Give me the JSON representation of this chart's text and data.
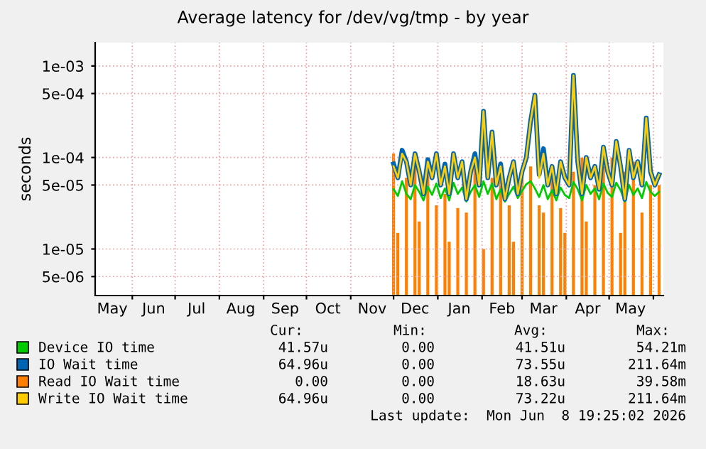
{
  "chart_data": {
    "type": "line",
    "title": "Average latency for /dev/vg/tmp - by year",
    "ylabel": "seconds",
    "log": "y",
    "grid": true,
    "legend": "bottom",
    "xlim": [
      "2025-05-06",
      "2026-06-08"
    ],
    "xticks": [
      {
        "value": "2025-06-01",
        "label": null
      },
      {
        "value": "2025-07-01",
        "label": null
      },
      {
        "value": "2025-08-01",
        "label": null
      },
      {
        "value": "2025-09-01",
        "label": null
      },
      {
        "value": "2025-10-01",
        "label": null
      },
      {
        "value": "2025-11-01",
        "label": null
      },
      {
        "value": "2025-12-01",
        "label": null
      },
      {
        "value": "2026-01-01",
        "label": null
      },
      {
        "value": "2026-02-01",
        "label": null
      },
      {
        "value": "2026-03-01",
        "label": null
      },
      {
        "value": "2026-04-01",
        "label": null
      },
      {
        "value": "2026-05-01",
        "label": null
      },
      {
        "value": "2026-06-01",
        "label": null
      },
      {
        "value": "2025-05-18",
        "label": "May"
      },
      {
        "value": "2025-06-16",
        "label": "Jun"
      },
      {
        "value": "2025-07-16",
        "label": "Jul"
      },
      {
        "value": "2025-08-16",
        "label": "Aug"
      },
      {
        "value": "2025-09-16",
        "label": "Sep"
      },
      {
        "value": "2025-10-16",
        "label": "Oct"
      },
      {
        "value": "2025-11-16",
        "label": "Nov"
      },
      {
        "value": "2025-12-16",
        "label": "Dec"
      },
      {
        "value": "2026-01-16",
        "label": "Jan"
      },
      {
        "value": "2026-02-15",
        "label": "Feb"
      },
      {
        "value": "2026-03-16",
        "label": "Mar"
      },
      {
        "value": "2026-04-16",
        "label": "Apr"
      },
      {
        "value": "2026-05-16",
        "label": "May"
      }
    ],
    "ylim": [
      3.1e-06,
      0.0018
    ],
    "yticks": [
      {
        "value": 5e-06,
        "label": "5e-06"
      },
      {
        "value": 1e-05,
        "label": "1e-05"
      },
      {
        "value": 5e-05,
        "label": "5e-05"
      },
      {
        "value": 0.0001,
        "label": "1e-04"
      },
      {
        "value": 0.0005,
        "label": "5e-04"
      },
      {
        "value": 0.001,
        "label": "1e-03"
      }
    ],
    "x": [
      "2025-12-01",
      "2025-12-04",
      "2025-12-07",
      "2025-12-10",
      "2025-12-13",
      "2025-12-16",
      "2025-12-19",
      "2025-12-22",
      "2025-12-25",
      "2025-12-28",
      "2025-12-31",
      "2026-01-03",
      "2026-01-06",
      "2026-01-09",
      "2026-01-12",
      "2026-01-15",
      "2026-01-18",
      "2026-01-21",
      "2026-01-24",
      "2026-01-27",
      "2026-01-30",
      "2026-02-02",
      "2026-02-05",
      "2026-02-08",
      "2026-02-11",
      "2026-02-14",
      "2026-02-17",
      "2026-02-20",
      "2026-02-23",
      "2026-02-26",
      "2026-03-01",
      "2026-03-04",
      "2026-03-07",
      "2026-03-10",
      "2026-03-13",
      "2026-03-16",
      "2026-03-19",
      "2026-03-22",
      "2026-03-25",
      "2026-03-28",
      "2026-03-31",
      "2026-04-03",
      "2026-04-06",
      "2026-04-09",
      "2026-04-12",
      "2026-04-15",
      "2026-04-18",
      "2026-04-21",
      "2026-04-24",
      "2026-04-27",
      "2026-04-30",
      "2026-05-03",
      "2026-05-06",
      "2026-05-09",
      "2026-05-12",
      "2026-05-15",
      "2026-05-18",
      "2026-05-21",
      "2026-05-24",
      "2026-05-27",
      "2026-05-30",
      "2026-06-02",
      "2026-06-05"
    ],
    "series": [
      {
        "name": "Device IO time",
        "color": "#00cc00",
        "values": [
          4.5e-05,
          3.8e-05,
          5.5e-05,
          4e-05,
          3.5e-05,
          5e-05,
          4.2e-05,
          3.4e-05,
          4.8e-05,
          3.9e-05,
          5.2e-05,
          3.6e-05,
          4.6e-05,
          3.4e-05,
          5.3e-05,
          4e-05,
          4.7e-05,
          3.3e-05,
          4.2e-05,
          5e-05,
          3.7e-05,
          5.5e-05,
          4e-05,
          5.2e-05,
          3.5e-05,
          4.5e-05,
          3.3e-05,
          4e-05,
          4.8e-05,
          3.6e-05,
          4.3e-05,
          5.1e-05,
          5.5e-05,
          4.6e-05,
          3.7e-05,
          5e-05,
          3.5e-05,
          4.4e-05,
          3.4e-05,
          4.7e-05,
          3.9e-05,
          3.6e-05,
          5.4e-05,
          4.5e-05,
          3.4e-05,
          5e-05,
          4e-05,
          4.6e-05,
          3.5e-05,
          5.2e-05,
          4.1e-05,
          3.7e-05,
          5.3e-05,
          4.4e-05,
          3.3e-05,
          5e-05,
          3.9e-05,
          4.6e-05,
          3.6e-05,
          5.4e-05,
          4.2e-05,
          3.8e-05,
          4.2e-05
        ]
      },
      {
        "name": "IO Wait time",
        "color": "#0066b3",
        "values": [
          8.5e-05,
          6e-05,
          0.00012,
          9e-05,
          5e-05,
          0.00011,
          7e-05,
          4e-05,
          9.5e-05,
          6e-05,
          0.00011,
          5e-05,
          8.5e-05,
          4e-05,
          0.00011,
          6e-05,
          9e-05,
          3.5e-05,
          7e-05,
          0.00011,
          5e-05,
          0.00032,
          6e-05,
          0.00019,
          5e-05,
          8.5e-05,
          3.5e-05,
          6e-05,
          9e-05,
          4e-05,
          7e-05,
          0.0001,
          0.00025,
          0.00048,
          6.5e-05,
          0.000125,
          5e-05,
          8e-05,
          4e-05,
          9e-05,
          6e-05,
          5e-05,
          0.00079,
          9e-05,
          4e-05,
          0.0001,
          6e-05,
          8e-05,
          4.5e-05,
          0.00013,
          7e-05,
          5e-05,
          0.00015,
          8e-05,
          3.5e-05,
          0.00012,
          6e-05,
          9e-05,
          5e-05,
          0.00027,
          7e-05,
          5e-05,
          6.5e-05
        ]
      },
      {
        "name": "Read IO Wait time",
        "type": "bar",
        "color": "#ff8000",
        "values": [
          0.00011,
          1.5e-05,
          null,
          6e-05,
          null,
          8e-05,
          2e-05,
          null,
          7e-05,
          null,
          3e-05,
          null,
          4e-05,
          1.2e-05,
          null,
          2.8e-05,
          null,
          2.5e-05,
          null,
          8e-05,
          null,
          1e-05,
          null,
          6e-05,
          null,
          9e-05,
          null,
          3e-05,
          1.2e-05,
          null,
          7e-05,
          null,
          8e-05,
          null,
          3e-05,
          2.5e-05,
          null,
          6e-05,
          null,
          2.8e-05,
          1.5e-05,
          null,
          7e-05,
          null,
          0.0001,
          2e-05,
          null,
          5e-05,
          null,
          8e-05,
          null,
          0.0001,
          null,
          1.5e-05,
          7e-05,
          null,
          9e-05,
          null,
          2.5e-05,
          null,
          5e-05,
          null,
          5e-05
        ]
      },
      {
        "name": "Write IO Wait time",
        "color": "#ffcc00",
        "values": [
          8e-05,
          6e-05,
          0.00011,
          9e-05,
          5e-05,
          0.00011,
          7e-05,
          4e-05,
          9e-05,
          6e-05,
          0.00011,
          5e-05,
          8e-05,
          4e-05,
          0.00011,
          6e-05,
          9e-05,
          3.5e-05,
          7e-05,
          0.0001,
          5e-05,
          0.00032,
          6e-05,
          0.00019,
          5e-05,
          8e-05,
          3.5e-05,
          6e-05,
          9e-05,
          4e-05,
          7e-05,
          0.0001,
          0.00025,
          0.00048,
          6e-05,
          0.00011,
          5e-05,
          8e-05,
          4e-05,
          9e-05,
          6e-05,
          5e-05,
          0.00079,
          9e-05,
          4e-05,
          0.0001,
          6e-05,
          8e-05,
          4.5e-05,
          0.00013,
          7e-05,
          5e-05,
          0.00015,
          8e-05,
          3.5e-05,
          0.00012,
          6e-05,
          9e-05,
          5e-05,
          0.00027,
          7e-05,
          5e-05,
          6.5e-05
        ]
      }
    ],
    "annotations": [
      "Cur:",
      "Min:",
      "Avg:",
      "Max:",
      "41.57u",
      "0.00",
      "41.51u",
      "54.21m",
      "64.96u",
      "0.00",
      "73.55u",
      "211.64m",
      "0.00",
      "0.00",
      "18.63u",
      "39.58m",
      "64.96u",
      "0.00",
      "73.22u",
      "211.64m",
      "Last update:  Mon Jun  8 19:25:02 2026"
    ]
  }
}
